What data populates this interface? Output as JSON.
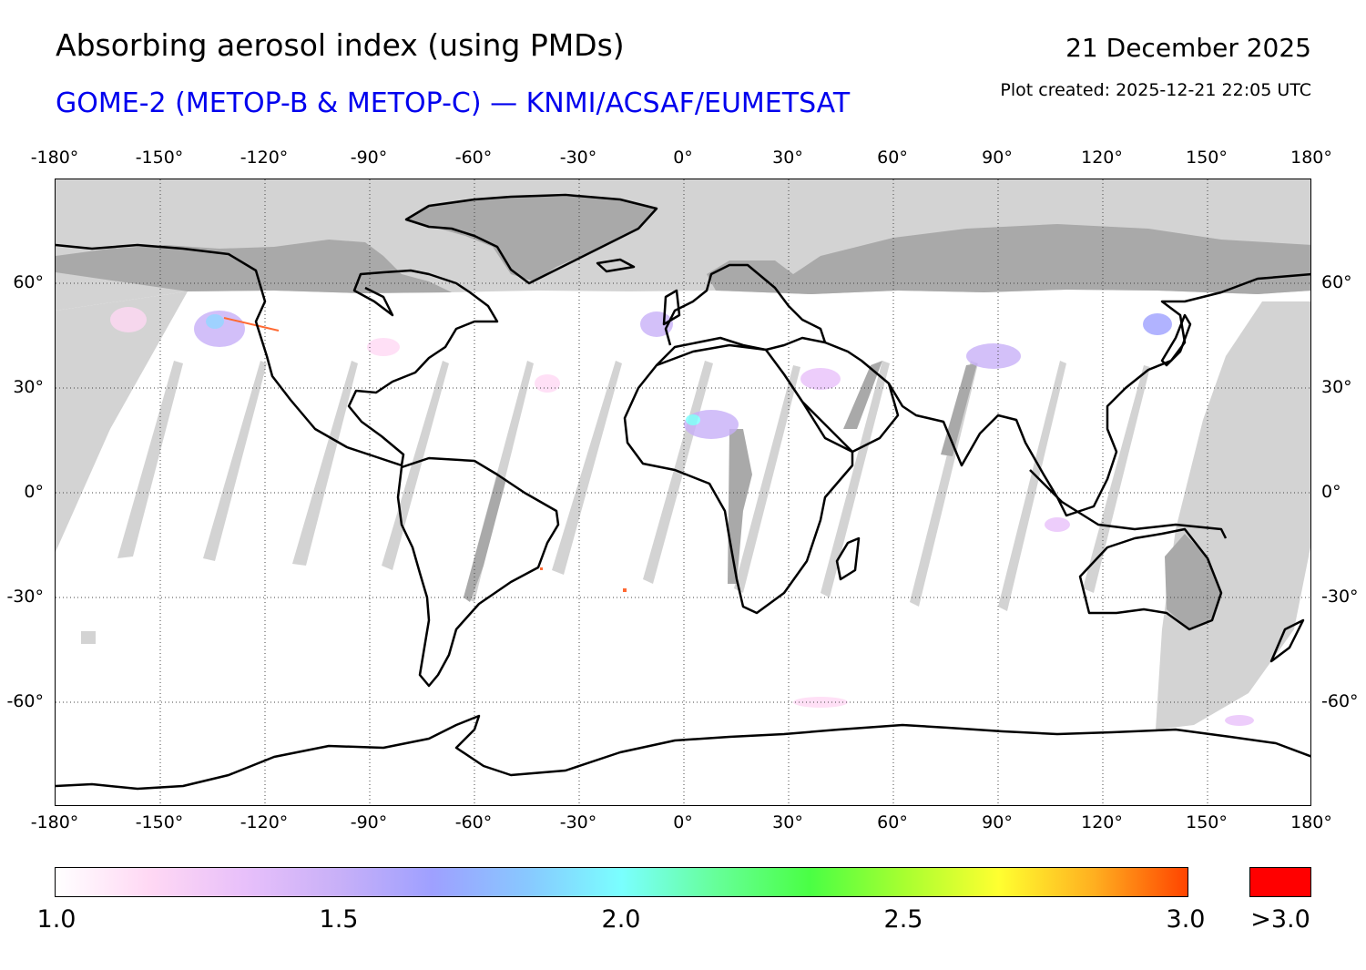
{
  "header": {
    "title": "Absorbing aerosol index (using PMDs)",
    "subtitle": "GOME-2 (METOP-B & METOP-C) — KNMI/ACSAF/EUMETSAT",
    "date": "21 December 2025",
    "created": "Plot created: 2025-12-21 22:05 UTC",
    "subtitle_color": "#0000ee"
  },
  "map": {
    "projection": "equirectangular",
    "extent": {
      "lon": [
        -180,
        180
      ],
      "lat": [
        -90,
        90
      ]
    },
    "gridlines": "dotted",
    "lon_labels": [
      "-180°",
      "-150°",
      "-120°",
      "-90°",
      "-60°",
      "-30°",
      "0°",
      "30°",
      "60°",
      "90°",
      "120°",
      "150°",
      "180°"
    ],
    "lat_labels_left": [
      "60°",
      "30°",
      "0°",
      "-30°",
      "-60°"
    ],
    "lat_labels_right": [
      "60°",
      "30°",
      "0°",
      "-30°",
      "-60°"
    ],
    "colors": {
      "no_data": "#d3d3d3",
      "land_no_data": "#a9a9a9",
      "coastline": "#000000",
      "background": "#ffffff"
    }
  },
  "colorbar": {
    "labels": [
      "1.0",
      "1.5",
      "2.0",
      "2.5",
      "3.0"
    ],
    "range": [
      1.0,
      3.0
    ],
    "over_label": ">3.0",
    "over_color": "#ff0000",
    "stops": [
      "#ffffff",
      "#ffd8f4",
      "#e8c0fa",
      "#c8b0f8",
      "#9ea0ff",
      "#88c8ff",
      "#7affff",
      "#66ff99",
      "#4aff44",
      "#a8ff30",
      "#ffff30",
      "#ffb020",
      "#ff4400"
    ]
  }
}
